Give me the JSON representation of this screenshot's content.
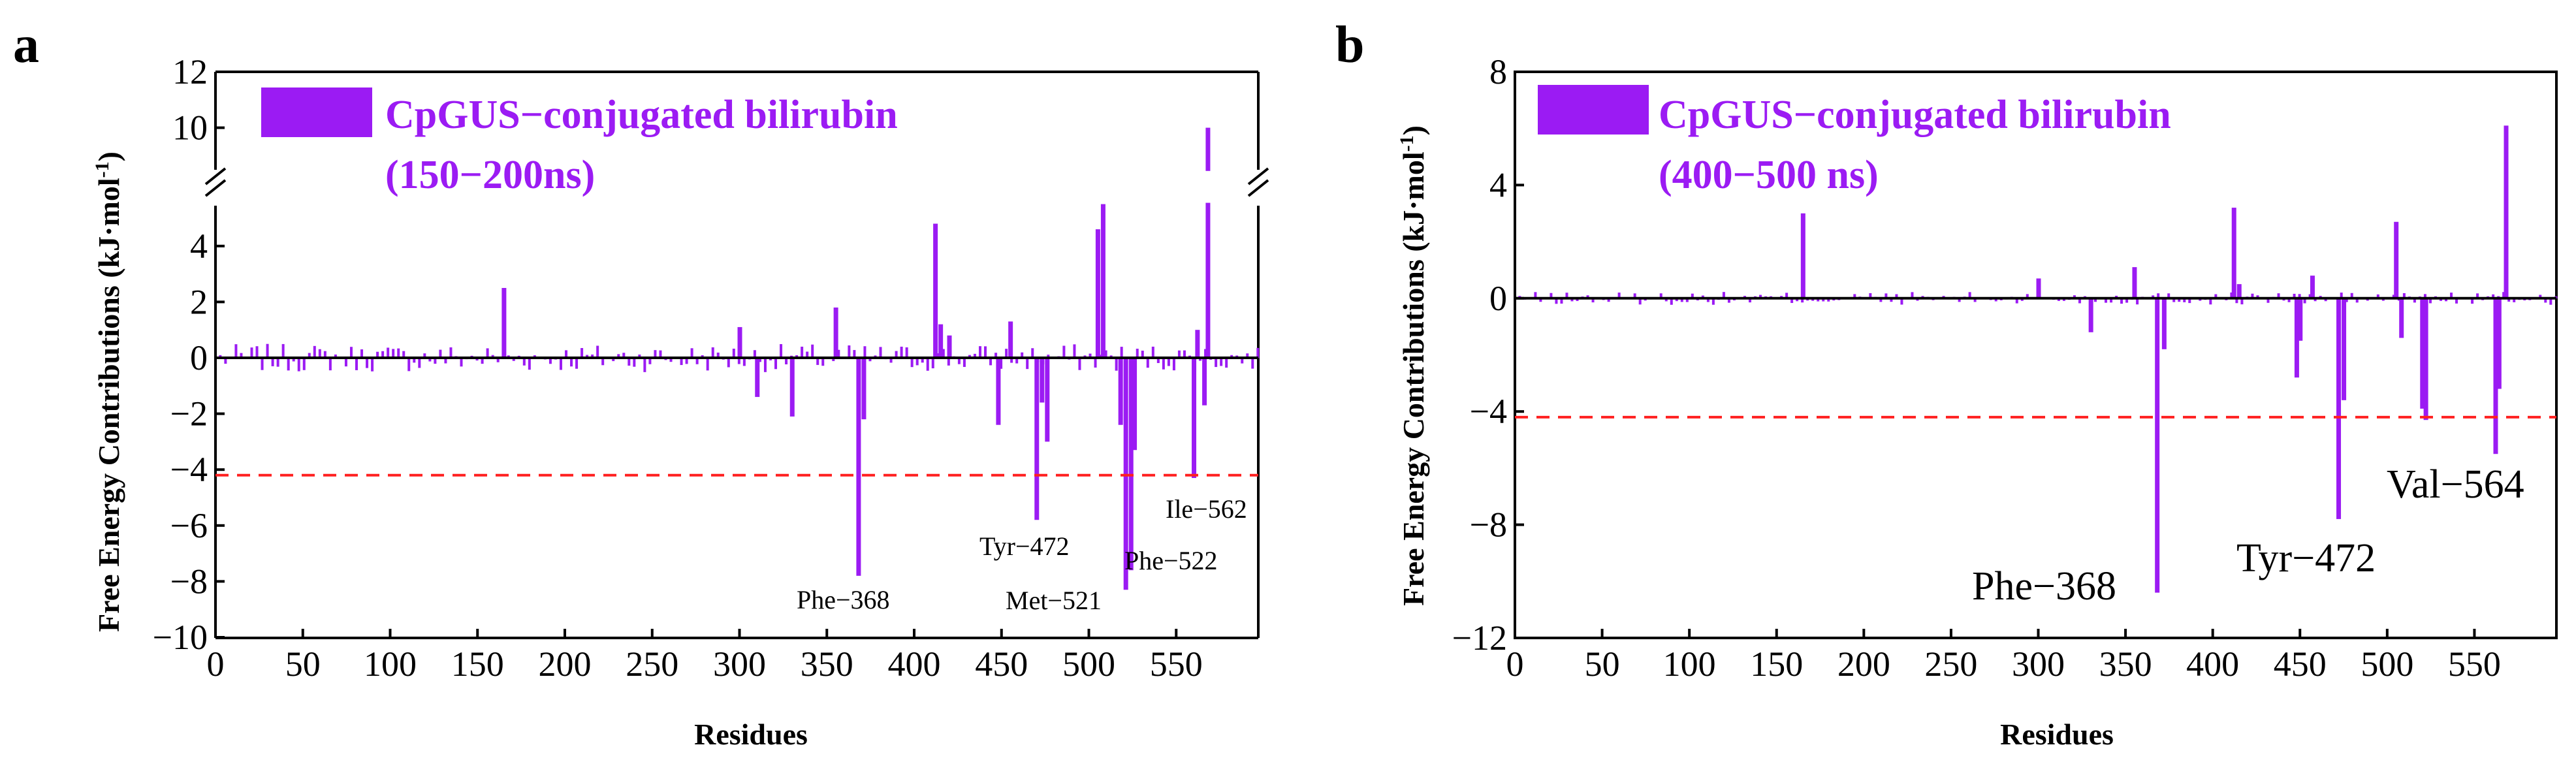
{
  "chart_data": [
    {
      "type": "bar",
      "panel_label": "a",
      "title": "",
      "xlabel": "Residues",
      "ylabel": "Free Energy Contributions (kJ·mol",
      "ylabel_sup": "-1",
      "ylabel_close": ")",
      "xlim": [
        0,
        597
      ],
      "ylim": [
        -10,
        12
      ],
      "axis_break": {
        "from": 5.5,
        "to": 8.5
      },
      "x_ticks": [
        "0",
        "50",
        "100",
        "150",
        "200",
        "250",
        "300",
        "350",
        "400",
        "450",
        "500",
        "550"
      ],
      "y_ticks": [
        "12",
        "10",
        "4",
        "2",
        "0",
        "-2",
        "-4",
        "-6",
        "-8",
        "-10"
      ],
      "threshold": -4.2,
      "legend": {
        "line1": "CpGUS−conjugated bilirubin",
        "line2": "(150−200ns)",
        "position": "top-left"
      },
      "color": "#9b1bf3",
      "series": [
        {
          "name": "CpGUS−conjugated bilirubin (150−200ns)",
          "x": [
            165,
            300,
            310,
            330,
            355,
            368,
            371,
            412,
            415,
            420,
            448,
            455,
            470,
            473,
            476,
            505,
            508,
            518,
            521,
            524,
            526,
            560,
            562,
            566,
            568
          ],
          "values": [
            2.5,
            1.1,
            -1.4,
            -2.1,
            1.8,
            -7.8,
            -2.2,
            4.8,
            1.2,
            0.8,
            -2.4,
            1.3,
            -5.8,
            -1.6,
            -3.0,
            4.6,
            5.5,
            -2.4,
            -8.3,
            -7.6,
            -3.3,
            -4.3,
            1.0,
            -1.7,
            10.0
          ]
        }
      ],
      "annotations": [
        "Phe−368",
        "Tyr−472",
        "Met−521",
        "Ile−562",
        "Phe−522"
      ]
    },
    {
      "type": "bar",
      "panel_label": "b",
      "title": "",
      "xlabel": "Residues",
      "ylabel": "Free Energy Contributions (kJ·mol",
      "ylabel_sup": "-1",
      "ylabel_close": ")",
      "xlim": [
        0,
        597
      ],
      "ylim": [
        -12,
        8
      ],
      "x_ticks": [
        "0",
        "50",
        "100",
        "150",
        "200",
        "250",
        "300",
        "350",
        "400",
        "450",
        "500",
        "550"
      ],
      "y_ticks": [
        "8",
        "4",
        "0",
        "-4",
        "-8",
        "-12"
      ],
      "threshold": -4.2,
      "legend": {
        "line1": "CpGUS−conjugated bilirubin",
        "line2": "(400−500 ns)",
        "position": "top-left"
      },
      "color": "#9b1bf3",
      "series": [
        {
          "name": "CpGUS−conjugated bilirubin (400−500 ns)",
          "x": [
            165,
            300,
            330,
            355,
            368,
            372,
            412,
            415,
            448,
            450,
            457,
            472,
            475,
            505,
            508,
            520,
            522,
            562,
            564,
            568
          ],
          "values": [
            3.0,
            0.7,
            -1.2,
            1.1,
            -10.4,
            -1.8,
            3.2,
            0.5,
            -2.8,
            -1.5,
            0.8,
            -7.8,
            -3.6,
            2.7,
            -1.4,
            -3.9,
            -4.3,
            -5.5,
            -3.2,
            6.1
          ]
        }
      ],
      "annotations": [
        "Phe−368",
        "Tyr−472",
        "Val−564"
      ]
    }
  ]
}
